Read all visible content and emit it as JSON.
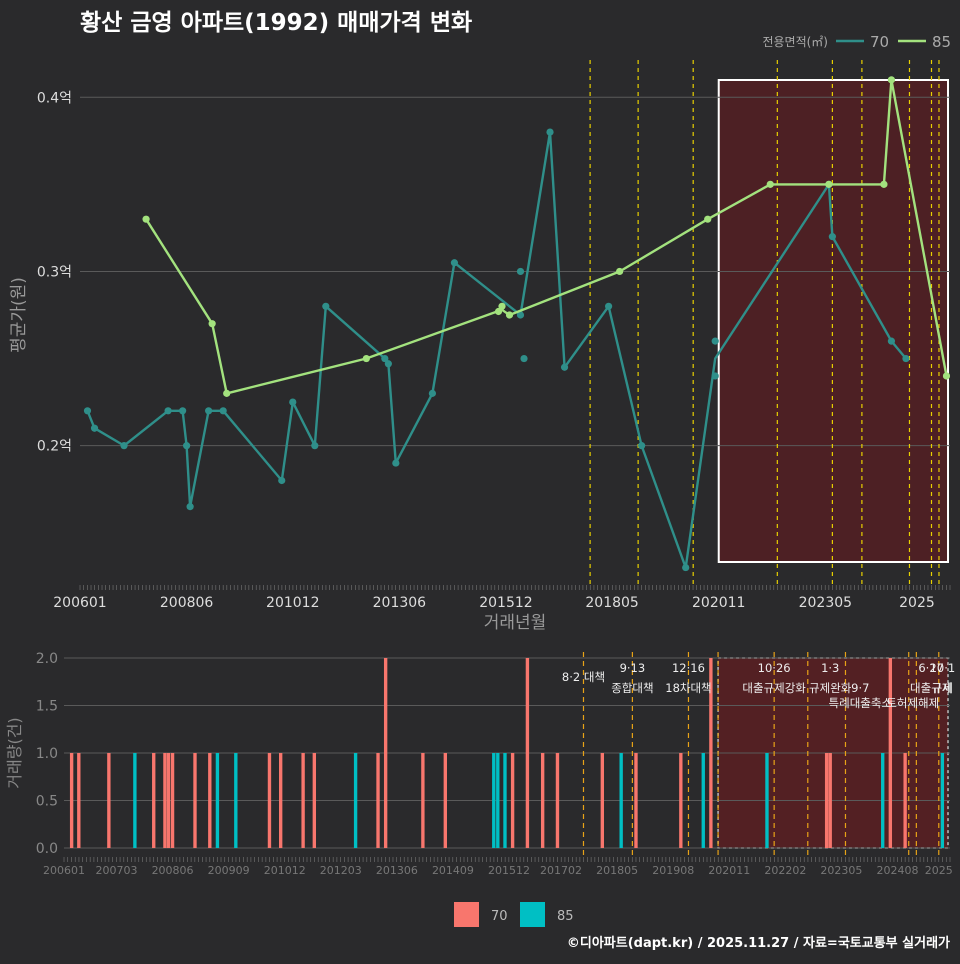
{
  "title": "황산 금영 아파트(1992) 매매가격 변화",
  "footer": "©디아파트(dapt.kr) / 2025.11.27 / 자료=국토교통부 실거래가",
  "colors": {
    "background": "#2a2a2c",
    "series_70": "#2f8f8a",
    "series_85": "#a3e27e",
    "bar_70": "#f8766d",
    "bar_85": "#00bfc4",
    "policy_line": "#e8d000",
    "policy_line_bottom": "#e8a317",
    "highlight": "#5a1e22",
    "grid": "#5a5a5a",
    "text": "#dddddd"
  },
  "chart_data": [
    {
      "type": "line",
      "name": "price-chart",
      "xlabel": "거래년월",
      "ylabel": "평균가(원)",
      "xlim": [
        2006.0,
        2025.75
      ],
      "ylim": [
        0.12,
        0.43
      ],
      "x_ticks": [
        {
          "v": 2006.0,
          "label": "200601"
        },
        {
          "v": 2008.42,
          "label": "200806"
        },
        {
          "v": 2010.83,
          "label": "201012"
        },
        {
          "v": 2013.25,
          "label": "201306"
        },
        {
          "v": 2015.67,
          "label": "201512"
        },
        {
          "v": 2018.08,
          "label": "201805"
        },
        {
          "v": 2020.5,
          "label": "202011"
        },
        {
          "v": 2022.92,
          "label": "202305"
        },
        {
          "v": 2025.0,
          "label": "2025"
        }
      ],
      "y_ticks": [
        {
          "v": 0.2,
          "label": "0.2억"
        },
        {
          "v": 0.3,
          "label": "0.3억"
        },
        {
          "v": 0.4,
          "label": "0.4억"
        }
      ],
      "legend": {
        "title": "전용면적(㎡)",
        "items": [
          "70",
          "85"
        ],
        "position": "top-right"
      },
      "series": [
        {
          "name": "70",
          "points": [
            [
              2006.17,
              0.22
            ],
            [
              2006.33,
              0.21
            ],
            [
              2007.0,
              0.2
            ],
            [
              2008.0,
              0.22
            ],
            [
              2008.33,
              0.22
            ],
            [
              2008.42,
              0.2
            ],
            [
              2008.5,
              0.165
            ],
            [
              2008.92,
              0.22
            ],
            [
              2009.25,
              0.22
            ],
            [
              2010.58,
              0.18
            ],
            [
              2010.83,
              0.225
            ],
            [
              2011.33,
              0.2
            ],
            [
              2011.58,
              0.28
            ],
            [
              2012.92,
              0.25
            ],
            [
              2013.0,
              0.247
            ],
            [
              2013.17,
              0.19
            ],
            [
              2014.0,
              0.23
            ],
            [
              2014.5,
              0.305
            ],
            [
              2016.0,
              0.275
            ],
            [
              2016.0,
              0.3
            ],
            [
              2016.08,
              0.25
            ],
            [
              2016.67,
              0.38
            ],
            [
              2017.0,
              0.245
            ],
            [
              2018.0,
              0.28
            ],
            [
              2018.75,
              0.2
            ],
            [
              2019.75,
              0.13
            ],
            [
              2020.42,
              0.24
            ],
            [
              2020.42,
              0.26
            ],
            [
              2023.0,
              0.35
            ],
            [
              2023.08,
              0.32
            ],
            [
              2024.42,
              0.26
            ],
            [
              2024.75,
              0.25
            ]
          ],
          "line_path": [
            [
              2006.17,
              0.22
            ],
            [
              2006.33,
              0.21
            ],
            [
              2007.0,
              0.2
            ],
            [
              2008.0,
              0.22
            ],
            [
              2008.33,
              0.22
            ],
            [
              2008.42,
              0.2
            ],
            [
              2008.5,
              0.165
            ],
            [
              2008.92,
              0.22
            ],
            [
              2009.25,
              0.22
            ],
            [
              2010.58,
              0.18
            ],
            [
              2010.83,
              0.225
            ],
            [
              2011.33,
              0.2
            ],
            [
              2011.58,
              0.28
            ],
            [
              2012.92,
              0.25
            ],
            [
              2013.0,
              0.247
            ],
            [
              2013.17,
              0.19
            ],
            [
              2014.0,
              0.23
            ],
            [
              2014.5,
              0.305
            ],
            [
              2016.0,
              0.275
            ],
            [
              2016.67,
              0.38
            ],
            [
              2017.0,
              0.245
            ],
            [
              2018.0,
              0.28
            ],
            [
              2018.75,
              0.2
            ],
            [
              2019.75,
              0.13
            ],
            [
              2020.42,
              0.25
            ],
            [
              2023.0,
              0.35
            ],
            [
              2023.08,
              0.32
            ],
            [
              2024.42,
              0.26
            ],
            [
              2024.75,
              0.25
            ]
          ]
        },
        {
          "name": "85",
          "points": [
            [
              2007.5,
              0.33
            ],
            [
              2009.0,
              0.27
            ],
            [
              2009.33,
              0.23
            ],
            [
              2012.5,
              0.25
            ],
            [
              2015.5,
              0.277
            ],
            [
              2015.58,
              0.28
            ],
            [
              2015.75,
              0.275
            ],
            [
              2018.25,
              0.3
            ],
            [
              2020.25,
              0.33
            ],
            [
              2021.67,
              0.35
            ],
            [
              2023.0,
              0.35
            ],
            [
              2024.25,
              0.35
            ],
            [
              2024.42,
              0.41
            ],
            [
              2025.67,
              0.24
            ]
          ],
          "line_path": [
            [
              2007.5,
              0.33
            ],
            [
              2009.0,
              0.27
            ],
            [
              2009.33,
              0.23
            ],
            [
              2012.5,
              0.25
            ],
            [
              2015.58,
              0.278
            ],
            [
              2015.75,
              0.275
            ],
            [
              2018.25,
              0.3
            ],
            [
              2020.25,
              0.33
            ],
            [
              2021.67,
              0.35
            ],
            [
              2023.0,
              0.35
            ],
            [
              2024.25,
              0.35
            ],
            [
              2024.42,
              0.41
            ],
            [
              2025.67,
              0.24
            ]
          ]
        }
      ],
      "policy_lines": [
        2017.58,
        2018.67,
        2019.92,
        2021.83,
        2023.08,
        2023.75,
        2024.83,
        2025.33,
        2025.5
      ],
      "highlight_range": [
        2020.5,
        2025.75
      ]
    },
    {
      "type": "bar",
      "name": "volume-chart",
      "ylabel": "거래량(건)",
      "xlim": [
        2006.0,
        2025.75
      ],
      "ylim": [
        0,
        2.0
      ],
      "x_ticks": [
        {
          "v": 2006.0,
          "label": "200601"
        },
        {
          "v": 2007.17,
          "label": "200703"
        },
        {
          "v": 2008.42,
          "label": "200806"
        },
        {
          "v": 2009.67,
          "label": "200909"
        },
        {
          "v": 2010.92,
          "label": "201012"
        },
        {
          "v": 2012.17,
          "label": "201203"
        },
        {
          "v": 2013.42,
          "label": "201306"
        },
        {
          "v": 2014.67,
          "label": "201409"
        },
        {
          "v": 2015.92,
          "label": "201512"
        },
        {
          "v": 2017.08,
          "label": "201702"
        },
        {
          "v": 2018.33,
          "label": "201805"
        },
        {
          "v": 2019.58,
          "label": "201908"
        },
        {
          "v": 2020.83,
          "label": "202011"
        },
        {
          "v": 2022.08,
          "label": "202202"
        },
        {
          "v": 2023.33,
          "label": "202305"
        },
        {
          "v": 2024.58,
          "label": "202408"
        },
        {
          "v": 2025.5,
          "label": "2025"
        }
      ],
      "y_ticks": [
        {
          "v": 0.0,
          "label": "0.0"
        },
        {
          "v": 0.5,
          "label": "0.5"
        },
        {
          "v": 1.0,
          "label": "1.0"
        },
        {
          "v": 1.5,
          "label": "1.5"
        },
        {
          "v": 2.0,
          "label": "2.0"
        }
      ],
      "legend": {
        "items": [
          "70",
          "85"
        ],
        "position": "bottom"
      },
      "bars": [
        {
          "x": 2006.17,
          "v": 1,
          "s": "70"
        },
        {
          "x": 2006.33,
          "v": 1,
          "s": "70"
        },
        {
          "x": 2007.0,
          "v": 1,
          "s": "70"
        },
        {
          "x": 2007.58,
          "v": 1,
          "s": "85"
        },
        {
          "x": 2008.0,
          "v": 1,
          "s": "70"
        },
        {
          "x": 2008.25,
          "v": 1,
          "s": "70"
        },
        {
          "x": 2008.33,
          "v": 1,
          "s": "70"
        },
        {
          "x": 2008.42,
          "v": 1,
          "s": "70"
        },
        {
          "x": 2008.92,
          "v": 1,
          "s": "70"
        },
        {
          "x": 2009.25,
          "v": 1,
          "s": "70"
        },
        {
          "x": 2009.42,
          "v": 1,
          "s": "85"
        },
        {
          "x": 2009.83,
          "v": 1,
          "s": "85"
        },
        {
          "x": 2010.58,
          "v": 1,
          "s": "70"
        },
        {
          "x": 2010.83,
          "v": 1,
          "s": "70"
        },
        {
          "x": 2011.33,
          "v": 1,
          "s": "70"
        },
        {
          "x": 2011.58,
          "v": 1,
          "s": "70"
        },
        {
          "x": 2012.5,
          "v": 1,
          "s": "85"
        },
        {
          "x": 2013.0,
          "v": 1,
          "s": "70"
        },
        {
          "x": 2013.17,
          "v": 2,
          "s": "70"
        },
        {
          "x": 2014.0,
          "v": 1,
          "s": "70"
        },
        {
          "x": 2014.5,
          "v": 1,
          "s": "70"
        },
        {
          "x": 2015.58,
          "v": 1,
          "s": "85"
        },
        {
          "x": 2015.67,
          "v": 1,
          "s": "85"
        },
        {
          "x": 2015.83,
          "v": 1,
          "s": "85"
        },
        {
          "x": 2016.0,
          "v": 1,
          "s": "70"
        },
        {
          "x": 2016.33,
          "v": 2,
          "s": "70"
        },
        {
          "x": 2016.67,
          "v": 1,
          "s": "70"
        },
        {
          "x": 2017.0,
          "v": 1,
          "s": "70"
        },
        {
          "x": 2018.0,
          "v": 1,
          "s": "70"
        },
        {
          "x": 2018.42,
          "v": 1,
          "s": "85"
        },
        {
          "x": 2018.75,
          "v": 1,
          "s": "70"
        },
        {
          "x": 2019.75,
          "v": 1,
          "s": "70"
        },
        {
          "x": 2020.25,
          "v": 1,
          "s": "85"
        },
        {
          "x": 2020.42,
          "v": 2,
          "s": "70"
        },
        {
          "x": 2021.67,
          "v": 1,
          "s": "85"
        },
        {
          "x": 2023.0,
          "v": 1,
          "s": "70"
        },
        {
          "x": 2023.08,
          "v": 1,
          "s": "70"
        },
        {
          "x": 2024.25,
          "v": 1,
          "s": "85"
        },
        {
          "x": 2024.42,
          "v": 2,
          "s": "70"
        },
        {
          "x": 2024.75,
          "v": 1,
          "s": "70"
        },
        {
          "x": 2025.58,
          "v": 1,
          "s": "85"
        }
      ],
      "policy_lines": [
        2017.58,
        2018.67,
        2019.92,
        2020.58,
        2021.83,
        2022.58,
        2023.42,
        2024.83,
        2025.0,
        2025.5
      ],
      "annotations": [
        {
          "x": 2017.58,
          "row": 1,
          "label": "8·2 대책"
        },
        {
          "x": 2018.67,
          "row": 0,
          "label": "9·13"
        },
        {
          "x": 2018.67,
          "row": 2,
          "label": "종합대책"
        },
        {
          "x": 2019.92,
          "row": 0,
          "label": "12·16"
        },
        {
          "x": 2019.92,
          "row": 2,
          "label": "18차대책"
        },
        {
          "x": 2021.83,
          "row": 0,
          "label": "10·26"
        },
        {
          "x": 2021.83,
          "row": 2,
          "label": "대출규제강화"
        },
        {
          "x": 2023.08,
          "row": 0,
          "label": "1·3"
        },
        {
          "x": 2023.08,
          "row": 2,
          "label": "규제완화"
        },
        {
          "x": 2023.75,
          "row": 2,
          "label": "9·7"
        },
        {
          "x": 2023.75,
          "row": 3,
          "label": "특례대출축소"
        },
        {
          "x": 2024.92,
          "row": 3,
          "label": "토허제해제"
        },
        {
          "x": 2025.33,
          "row": 0,
          "label": "6·27"
        },
        {
          "x": 2025.33,
          "row": 2,
          "label": "대출규제"
        },
        {
          "x": 2025.58,
          "row": 0,
          "label": "10·1"
        },
        {
          "x": 2025.58,
          "row": 2,
          "label": "규제"
        }
      ],
      "highlight_range": [
        2020.58,
        2025.75
      ]
    }
  ]
}
